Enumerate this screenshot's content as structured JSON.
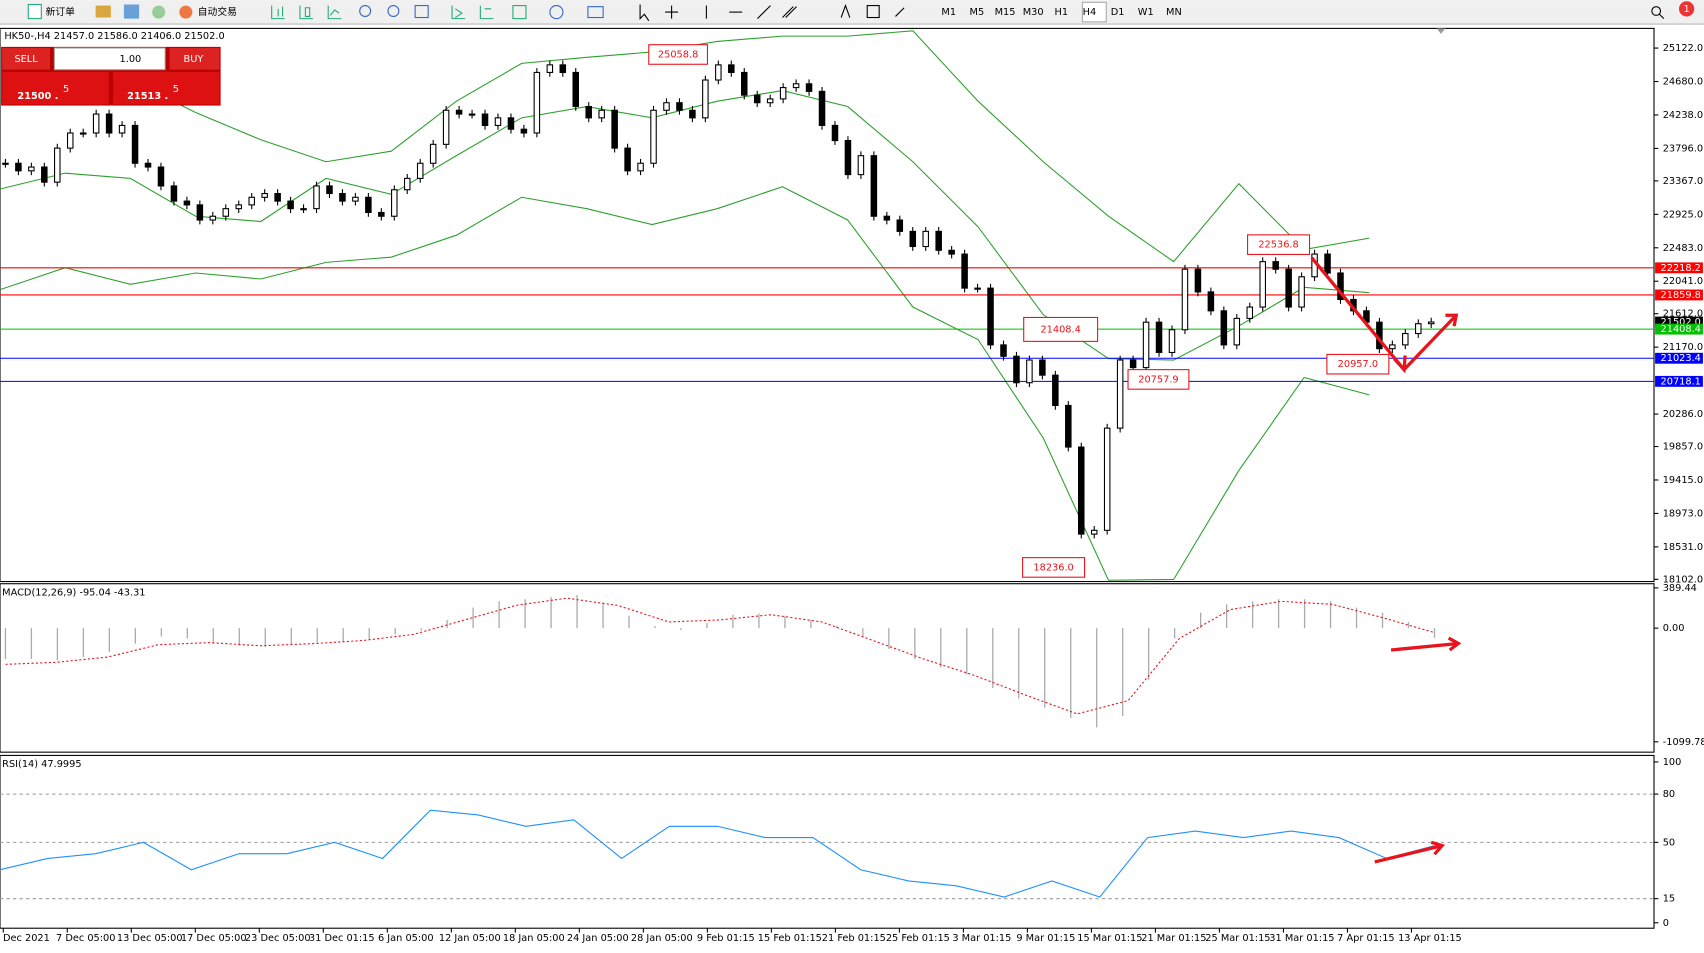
{
  "toolbar": {
    "new_order": "新订单",
    "auto_trade": "自动交易",
    "timeframes": [
      "M1",
      "M5",
      "M15",
      "M30",
      "H1",
      "H4",
      "D1",
      "W1",
      "MN"
    ],
    "notification_count": "1"
  },
  "order_panel": {
    "sell": "SELL",
    "buy": "BUY",
    "volume": "1.00",
    "sell_main": "21500 .",
    "sell_tail": "5",
    "buy_main": "21513 .",
    "buy_tail": "5"
  },
  "main_chart": {
    "symbol_info": "HK50-,H4  21457.0 21586.0 21406.0 21502.0",
    "ylim": [
      18073,
      25382
    ],
    "yticks": [
      {
        "value": 25122,
        "label": "25122.0"
      },
      {
        "value": 24680,
        "label": "24680.0"
      },
      {
        "value": 24238,
        "label": "24238.0"
      },
      {
        "value": 23796,
        "label": "23796.0"
      },
      {
        "value": 23367,
        "label": "23367.0"
      },
      {
        "value": 22925,
        "label": "22925.0"
      },
      {
        "value": 22483,
        "label": "22483.0"
      },
      {
        "value": 22041,
        "label": "22041.0"
      },
      {
        "value": 21612,
        "label": "21612.0"
      },
      {
        "value": 21170,
        "label": "21170.0"
      },
      {
        "value": 20286,
        "label": "20286.0"
      },
      {
        "value": 19857,
        "label": "19857.0"
      },
      {
        "value": 19415,
        "label": "19415.0"
      },
      {
        "value": 18973,
        "label": "18973.0"
      },
      {
        "value": 18531,
        "label": "18531.0"
      },
      {
        "value": 18102,
        "label": "18102.0"
      }
    ],
    "closes": [
      23600,
      23500,
      23550,
      23350,
      23800,
      24000,
      24000,
      24250,
      24000,
      24100,
      23600,
      23550,
      23300,
      23100,
      23050,
      22850,
      22900,
      23000,
      23050,
      23150,
      23200,
      23100,
      23000,
      23000,
      23300,
      23200,
      23100,
      23150,
      22950,
      22900,
      23250,
      23400,
      23600,
      23850,
      24300,
      24250,
      24250,
      24100,
      24200,
      24050,
      24000,
      24800,
      24900,
      24800,
      24350,
      24200,
      24300,
      23800,
      23500,
      23600,
      24300,
      24400,
      24300,
      24200,
      24700,
      24900,
      24800,
      24500,
      24400,
      24450,
      24600,
      24650,
      24550,
      24100,
      23900,
      23450,
      23700,
      22900,
      22850,
      22700,
      22500,
      22700,
      22450,
      22400,
      21950,
      21950,
      21200,
      21050,
      20700,
      21000,
      20800,
      20400,
      19850,
      18700,
      18750,
      20100,
      21000,
      20900,
      21500,
      21100,
      21400,
      22200,
      21900,
      21650,
      21200,
      21550,
      21700,
      22300,
      22200,
      21700,
      22100,
      22400,
      22150,
      21800,
      21650,
      21500,
      21150,
      21200,
      21350,
      21480,
      21502
    ],
    "bands": {
      "upper": [
        24420,
        24490,
        24700,
        24270,
        23910,
        23620,
        23760,
        24420,
        24920,
        25000,
        25070,
        25210,
        25280,
        25280,
        25350,
        24420,
        23620,
        22900,
        22300,
        23330,
        22460,
        22610
      ],
      "middle": [
        23260,
        23470,
        23400,
        22900,
        22830,
        23400,
        23190,
        23700,
        24200,
        24350,
        24200,
        24420,
        24560,
        24350,
        23620,
        22760,
        21600,
        21020,
        21000,
        21450,
        21960,
        21890
      ],
      "lower": [
        21930,
        22220,
        22000,
        22150,
        22070,
        22290,
        22360,
        22650,
        23150,
        23000,
        22790,
        23000,
        23290,
        22850,
        21700,
        21270,
        19970,
        18090,
        18100,
        19540,
        20770,
        20540
      ]
    },
    "levels": [
      {
        "value": 22218.2,
        "label": "22218.2",
        "color": "#ff0000"
      },
      {
        "value": 21859.8,
        "label": "21859.8",
        "color": "#ff0000"
      },
      {
        "value": 21502.0,
        "label": "21502.0",
        "color": "#000000"
      },
      {
        "value": 21408.4,
        "label": "21408.4",
        "color": "#00c000"
      },
      {
        "value": 21023.4,
        "label": "21023.4",
        "color": "#0000ff"
      },
      {
        "value": 20718.1,
        "label": "20718.1",
        "color": "#0000ff"
      }
    ],
    "annotations": [
      "25058.8",
      "22536.8",
      "21408.4",
      "20757.9",
      "20957.0",
      "18236.0"
    ]
  },
  "macd": {
    "label": "MACD(12,26,9) -95.04 -43.31",
    "ylim": [
      -1200,
      430
    ],
    "yticks": [
      389.44,
      {
        "value": 0,
        "label": "0.00"
      },
      -1099.78
    ],
    "histogram": [
      -300,
      -300,
      -310,
      -280,
      -230,
      -150,
      -80,
      -100,
      -150,
      -170,
      -180,
      -160,
      -140,
      -130,
      -110,
      -60,
      -20,
      80,
      200,
      260,
      280,
      300,
      320,
      250,
      120,
      20,
      -20,
      50,
      130,
      140,
      120,
      80,
      20,
      -80,
      -200,
      -300,
      -380,
      -450,
      -580,
      -680,
      -770,
      -870,
      -960,
      -850,
      -500,
      -100,
      150,
      230,
      260,
      280,
      280,
      260,
      200,
      150,
      60,
      -95.04
    ],
    "signal": [
      -350,
      -330,
      -280,
      -160,
      -140,
      -170,
      -150,
      -120,
      -60,
      80,
      220,
      290,
      220,
      60,
      80,
      130,
      60,
      -120,
      -300,
      -460,
      -650,
      -830,
      -700,
      -100,
      180,
      260,
      230,
      100,
      -43.31
    ]
  },
  "rsi": {
    "label": "RSI(14) 47.9995",
    "ylim": [
      0,
      100
    ],
    "yticks": [
      100,
      80,
      50,
      15,
      0
    ],
    "values": [
      33,
      40,
      43,
      50,
      33,
      43,
      43,
      50,
      40,
      70,
      67,
      60,
      64,
      40,
      60,
      60,
      53,
      53,
      33,
      26,
      23,
      16,
      26,
      16,
      53,
      57,
      53,
      57,
      53,
      40,
      47.9995
    ]
  },
  "dates": [
    "1 Dec 2021",
    "7 Dec 05:00",
    "13 Dec 05:00",
    "17 Dec 05:00",
    "23 Dec 05:00",
    "31 Dec 01:15",
    "6 Jan 05:00",
    "12 Jan 05:00",
    "18 Jan 05:00",
    "24 Jan 05:00",
    "28 Jan 05:00",
    "9 Feb 01:15",
    "15 Feb 01:15",
    "21 Feb 01:15",
    "25 Feb 01:15",
    "3 Mar 01:15",
    "9 Mar 01:15",
    "15 Mar 01:15",
    "21 Mar 01:15",
    "25 Mar 01:15",
    "31 Mar 01:15",
    "7 Apr 01:15",
    "13 Apr 01:15"
  ]
}
